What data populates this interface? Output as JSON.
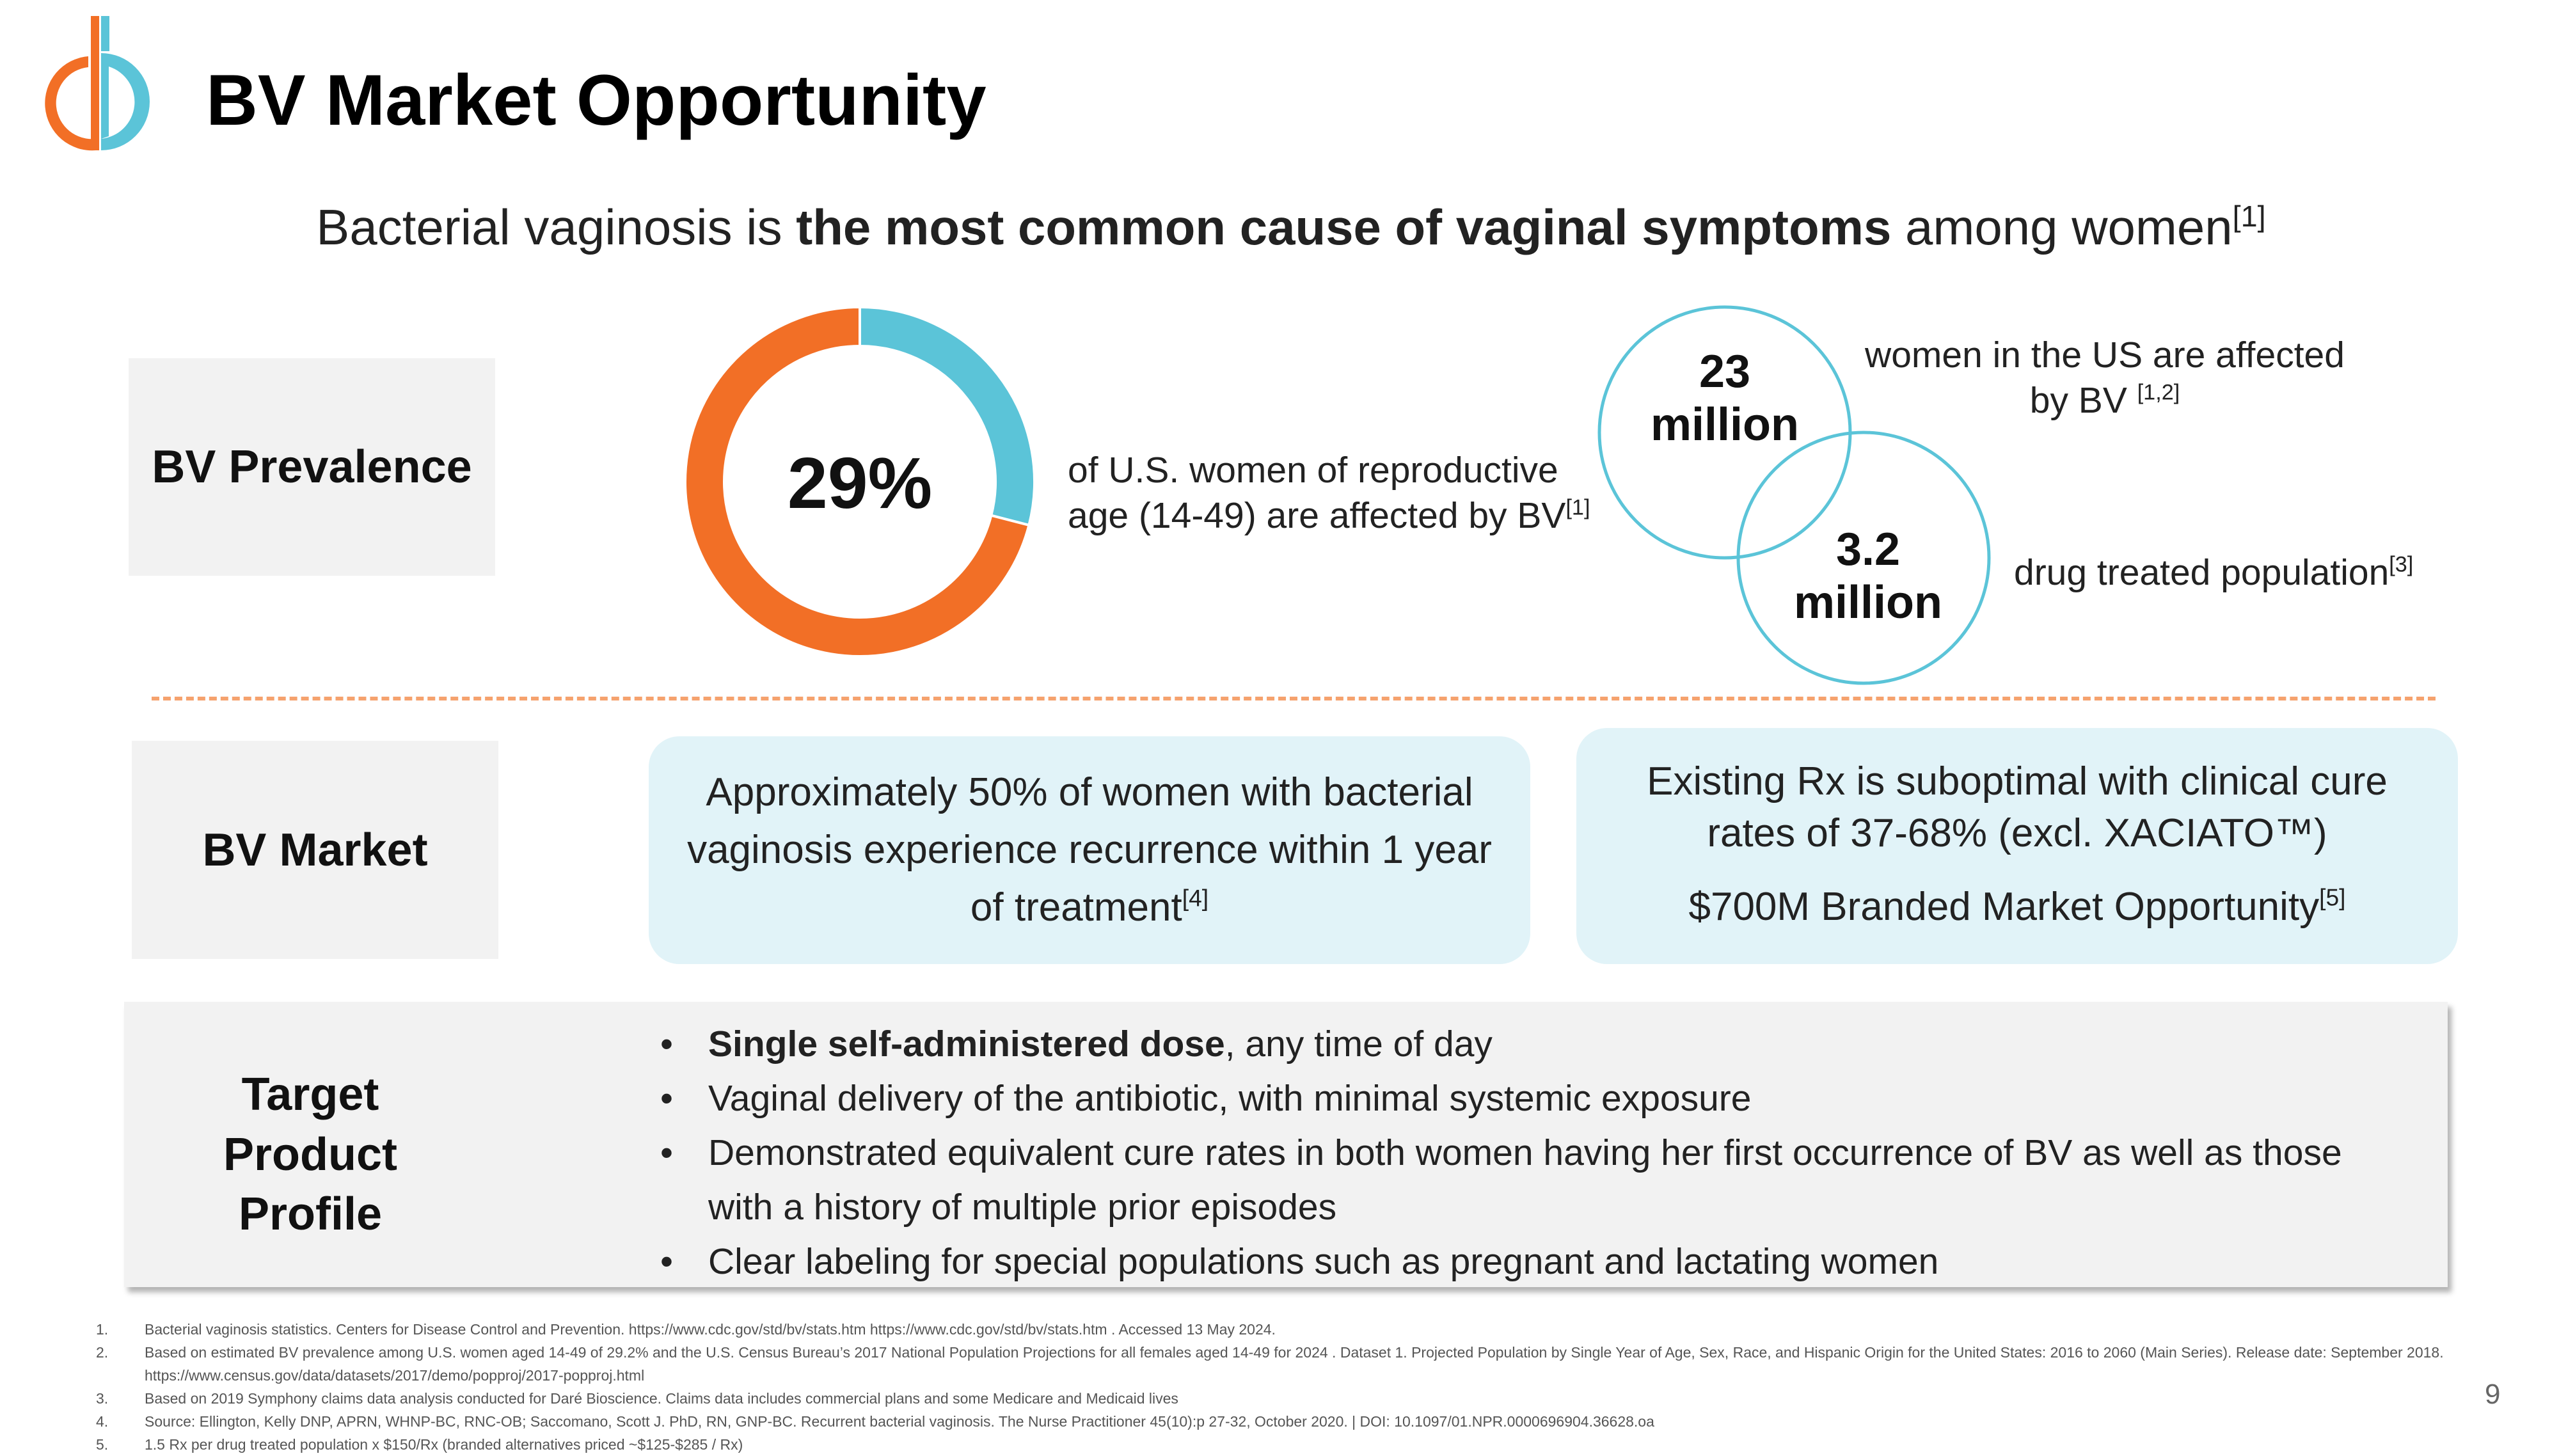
{
  "header": {
    "title": "BV Market Opportunity",
    "subtitle_pre": "Bacterial vaginosis is ",
    "subtitle_bold": "the most common cause of vaginal symptoms",
    "subtitle_post": " among women",
    "subtitle_ref": "[1]"
  },
  "prevalence": {
    "label": "BV Prevalence",
    "percent_text": "29%",
    "percent_value": 29,
    "desc_line1": "of U.S. women of reproductive",
    "desc_line2": "age (14-49) are affected by BV",
    "desc_ref": "[1]",
    "circle1": {
      "value": "23",
      "unit": "million",
      "desc_line1": "women in the US are affected",
      "desc_line2": "by BV ",
      "ref": "[1,2]"
    },
    "circle2": {
      "value": "3.2",
      "unit": "million",
      "desc": "drug treated population",
      "ref": "[3]"
    }
  },
  "market": {
    "label": "BV Market",
    "box1_text": "Approximately 50% of women with bacterial vaginosis experience recurrence within 1 year of treatment",
    "box1_ref": "[4]",
    "box2_line1": "Existing Rx is suboptimal with clinical cure rates of 37-68% (excl. XACIATO™)",
    "box2_line2": "$700M Branded Market Opportunity",
    "box2_ref": "[5]"
  },
  "tpp": {
    "label_1": "Target",
    "label_2": "Product",
    "label_3": "Profile",
    "bullet1_bold": "Single self-administered dose",
    "bullet1_rest": ", any time of day",
    "bullet2": "Vaginal delivery of the antibiotic, with minimal systemic exposure",
    "bullet3": "Demonstrated equivalent cure rates in both women having her first occurrence of BV as well as those with a history of multiple prior episodes",
    "bullet4": "Clear labeling for special populations such as pregnant and lactating women"
  },
  "footnotes": [
    {
      "n": "1.",
      "text": "Bacterial vaginosis statistics. Centers for Disease Control and Prevention. https://www.cdc.gov/std/bv/stats.htm https://www.cdc.gov/std/bv/stats.htm . Accessed 13 May 2024."
    },
    {
      "n": "2.",
      "text": "Based on estimated BV prevalence among U.S.  women aged 14-49 of 29.2% and the U.S. Census Bureau’s 2017 National Population Projections for all females aged 14-49 for 2024 . Dataset 1. Projected Population by Single Year of Age, Sex, Race, and Hispanic Origin for the United States: 2016 to 2060 (Main Series). Release date: September 2018. https://www.census.gov/data/datasets/2017/demo/popproj/2017-popproj.html"
    },
    {
      "n": "3.",
      "text": "Based on 2019 Symphony claims data analysis conducted for Daré Bioscience.  Claims data includes commercial plans and some Medicare and Medicaid lives"
    },
    {
      "n": "4.",
      "text": "Source: Ellington, Kelly DNP, APRN, WHNP-BC, RNC-OB; Saccomano, Scott J. PhD, RN, GNP-BC. Recurrent bacterial vaginosis. The Nurse Practitioner 45(10):p 27-32, October 2020. | DOI: 10.1097/01.NPR.0000696904.36628.oa"
    },
    {
      "n": "5.",
      "text": "1.5 Rx per drug treated population x $150/Rx (branded alternatives priced ~$125-$285 / Rx)"
    }
  ],
  "page_number": "9",
  "colors": {
    "orange": "#F26F26",
    "teal": "#5BC4D8",
    "box_blue": "#E1F3F8",
    "box_gray": "#F2F2F2"
  }
}
